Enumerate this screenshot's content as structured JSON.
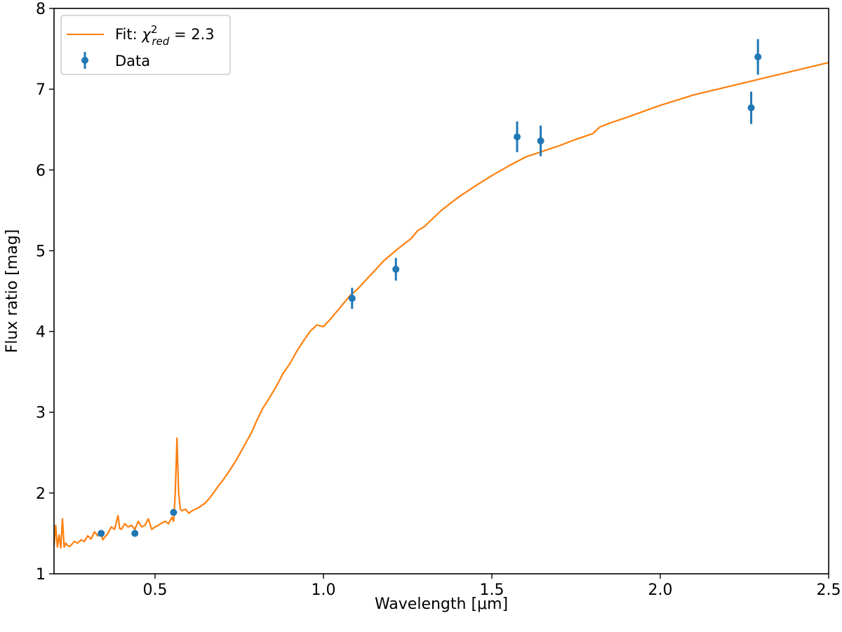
{
  "chart_data": {
    "type": "scatter",
    "xlabel": "Wavelength [μm]",
    "ylabel": "Flux ratio [mag]",
    "xlim": [
      0.2,
      2.5
    ],
    "ylim": [
      1,
      8
    ],
    "x_ticks": [
      "0.5",
      "1.0",
      "1.5",
      "2.0",
      "2.5"
    ],
    "y_ticks": [
      "1",
      "2",
      "3",
      "4",
      "5",
      "6",
      "7",
      "8"
    ],
    "grid": false,
    "legend_position": "top-left",
    "colors": {
      "fit": "#ff7f0e",
      "data": "#1f77b4"
    },
    "legend": {
      "fit_prefix": "Fit: ",
      "fit_chi": "χ",
      "fit_sup": "2",
      "fit_sub": "red",
      "fit_value": " = 2.3",
      "data_label": "Data"
    },
    "series": [
      {
        "type": "line",
        "x": [
          0.2,
          0.205,
          0.21,
          0.215,
          0.22,
          0.225,
          0.23,
          0.235,
          0.24,
          0.245,
          0.25,
          0.26,
          0.27,
          0.28,
          0.29,
          0.3,
          0.31,
          0.32,
          0.33,
          0.34,
          0.345,
          0.35,
          0.36,
          0.37,
          0.38,
          0.39,
          0.395,
          0.4,
          0.41,
          0.42,
          0.43,
          0.44,
          0.45,
          0.46,
          0.47,
          0.48,
          0.49,
          0.5,
          0.51,
          0.52,
          0.53,
          0.54,
          0.55,
          0.555,
          0.56,
          0.565,
          0.57,
          0.575,
          0.58,
          0.59,
          0.6,
          0.61,
          0.63,
          0.65,
          0.67,
          0.69,
          0.7,
          0.72,
          0.74,
          0.76,
          0.78,
          0.79,
          0.8,
          0.82,
          0.84,
          0.86,
          0.88,
          0.9,
          0.92,
          0.94,
          0.96,
          0.98,
          0.99,
          1.0,
          1.02,
          1.04,
          1.06,
          1.08,
          1.1,
          1.14,
          1.18,
          1.22,
          1.26,
          1.28,
          1.3,
          1.35,
          1.4,
          1.45,
          1.5,
          1.55,
          1.6,
          1.65,
          1.7,
          1.75,
          1.8,
          1.82,
          1.85,
          1.9,
          2.0,
          2.1,
          2.2,
          2.3,
          2.4,
          2.5
        ],
        "y": [
          1.35,
          1.6,
          1.33,
          1.48,
          1.32,
          1.68,
          1.33,
          1.38,
          1.35,
          1.34,
          1.35,
          1.4,
          1.38,
          1.42,
          1.4,
          1.47,
          1.43,
          1.52,
          1.47,
          1.5,
          1.42,
          1.45,
          1.5,
          1.58,
          1.55,
          1.72,
          1.56,
          1.55,
          1.62,
          1.58,
          1.6,
          1.55,
          1.65,
          1.58,
          1.6,
          1.68,
          1.55,
          1.58,
          1.6,
          1.63,
          1.65,
          1.62,
          1.7,
          1.65,
          2.0,
          2.68,
          2.0,
          1.8,
          1.78,
          1.8,
          1.75,
          1.78,
          1.82,
          1.88,
          1.98,
          2.1,
          2.15,
          2.27,
          2.4,
          2.55,
          2.7,
          2.78,
          2.88,
          3.05,
          3.18,
          3.32,
          3.48,
          3.6,
          3.75,
          3.88,
          4.0,
          4.08,
          4.07,
          4.06,
          4.15,
          4.25,
          4.35,
          4.45,
          4.52,
          4.7,
          4.88,
          5.02,
          5.15,
          5.25,
          5.3,
          5.5,
          5.66,
          5.8,
          5.93,
          6.05,
          6.16,
          6.23,
          6.3,
          6.38,
          6.45,
          6.53,
          6.58,
          6.65,
          6.8,
          6.93,
          7.03,
          7.13,
          7.23,
          7.33
        ]
      },
      {
        "type": "errorbar",
        "x": [
          0.34,
          0.44,
          0.555,
          1.085,
          1.215,
          1.575,
          1.645,
          2.27,
          2.29
        ],
        "y": [
          1.5,
          1.5,
          1.76,
          4.41,
          4.77,
          6.41,
          6.36,
          6.77,
          7.4
        ],
        "yerr": [
          0.02,
          0.02,
          0.03,
          0.13,
          0.14,
          0.19,
          0.19,
          0.2,
          0.22
        ]
      }
    ]
  }
}
